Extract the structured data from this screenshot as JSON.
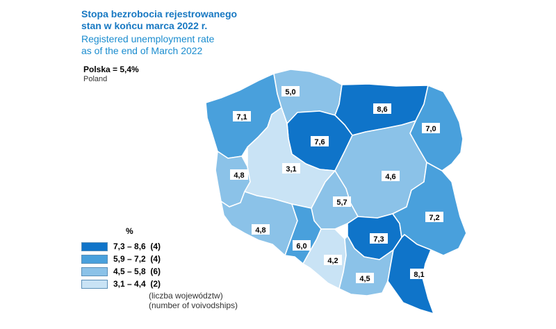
{
  "title": {
    "pl_line1": "Stopa bezrobocia rejestrowanego",
    "pl_line2": "stan w końcu marca 2022 r.",
    "en_line1": "Registered unemployment rate",
    "en_line2": "as of the end of March 2022"
  },
  "national": {
    "value": "Polska = 5,4%",
    "label_en": "Poland"
  },
  "colors": {
    "c1": "#0f74c9",
    "c2": "#49a0dc",
    "c3": "#8bc2e8",
    "c4": "#c9e3f5",
    "border": "#ffffff"
  },
  "regions": [
    {
      "id": "zachodniopomorskie",
      "value": "7,1",
      "class": 2
    },
    {
      "id": "pomorskie",
      "value": "5,0",
      "class": 3
    },
    {
      "id": "warminsko-mazurskie",
      "value": "8,6",
      "class": 1
    },
    {
      "id": "podlaskie",
      "value": "7,0",
      "class": 2
    },
    {
      "id": "kujawsko-pomorskie",
      "value": "7,6",
      "class": 1
    },
    {
      "id": "lubuskie",
      "value": "4,8",
      "class": 3
    },
    {
      "id": "wielkopolskie",
      "value": "3,1",
      "class": 4
    },
    {
      "id": "mazowieckie",
      "value": "4,6",
      "class": 3
    },
    {
      "id": "lodzkie",
      "value": "5,7",
      "class": 3
    },
    {
      "id": "dolnoslaskie",
      "value": "4,8",
      "class": 3
    },
    {
      "id": "opolskie",
      "value": "6,0",
      "class": 2
    },
    {
      "id": "slaskie",
      "value": "4,2",
      "class": 4
    },
    {
      "id": "swietokrzyskie",
      "value": "7,3",
      "class": 1
    },
    {
      "id": "lubelskie",
      "value": "7,2",
      "class": 2
    },
    {
      "id": "malopolskie",
      "value": "4,5",
      "class": 3
    },
    {
      "id": "podkarpackie",
      "value": "8,1",
      "class": 1
    }
  ],
  "legend": {
    "unit": "%",
    "items": [
      {
        "range": "7,3 – 8,6  (4)",
        "color": "#0f74c9"
      },
      {
        "range": "5,9 – 7,2  (4)",
        "color": "#49a0dc"
      },
      {
        "range": "4,5 – 5,8  (6)",
        "color": "#8bc2e8"
      },
      {
        "range": "3,1 – 4,4  (2)",
        "color": "#c9e3f5"
      }
    ],
    "note_pl": "(liczba województw)",
    "note_en": "(number of voivodships)"
  }
}
